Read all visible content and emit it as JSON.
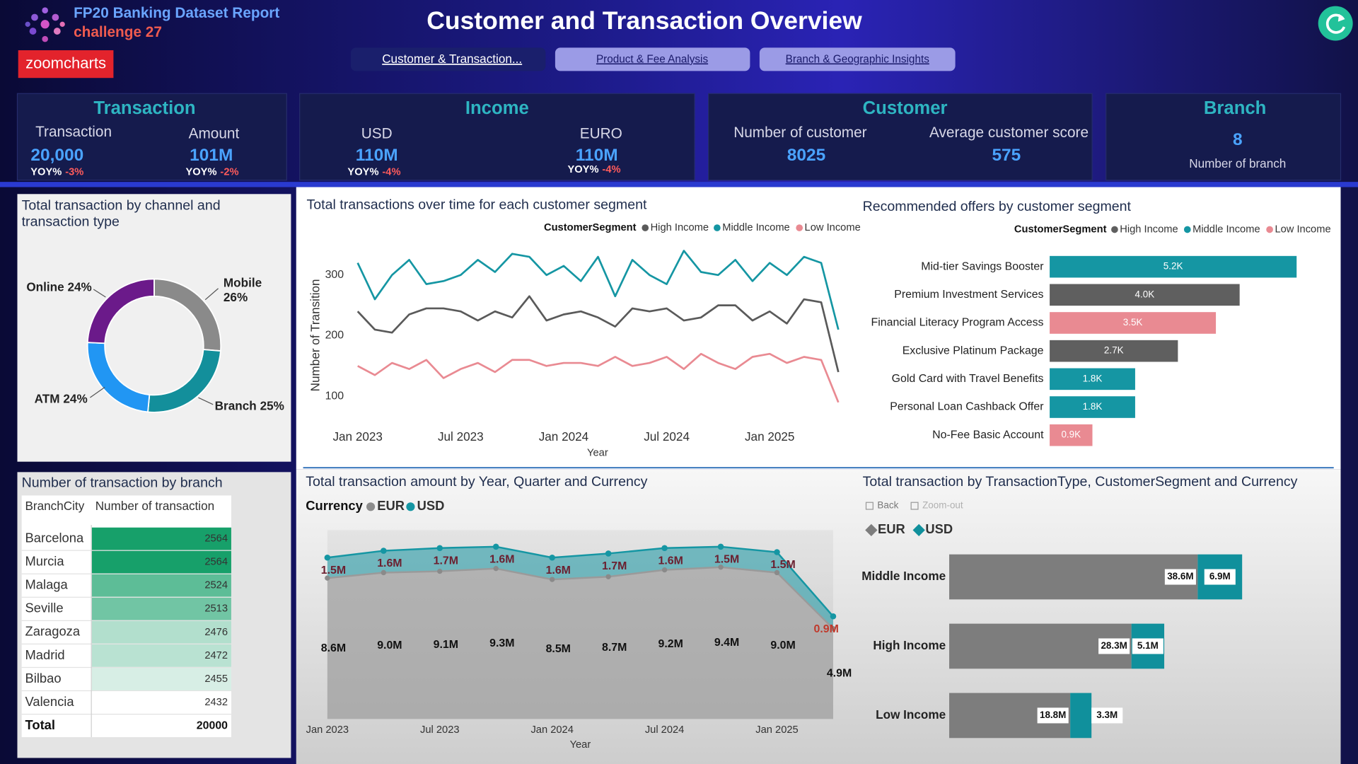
{
  "header": {
    "title": "FP20 Banking Dataset Report",
    "subtitle": "challenge 27",
    "logo": "zoomcharts",
    "page_title": "Customer and Transaction Overview"
  },
  "nav": [
    "Customer & Transaction...",
    "Product & Fee Analysis",
    "Branch & Geographic Insights"
  ],
  "kpis": [
    {
      "title": "Transaction",
      "items": [
        {
          "label": "Transaction",
          "value": "20,000",
          "yoy_label": "YOY%",
          "yoy": "-3%"
        },
        {
          "label": "Amount",
          "value": "101M",
          "yoy_label": "YOY%",
          "yoy": "-2%"
        }
      ]
    },
    {
      "title": "Income",
      "items": [
        {
          "label": "USD",
          "value": "110M",
          "yoy_label": "YOY%",
          "yoy": "-4%"
        },
        {
          "label": "EURO",
          "value": "110M",
          "yoy_label": "YOY%",
          "yoy": "-4%"
        }
      ]
    },
    {
      "title": "Customer",
      "items": [
        {
          "label": "Number of customer",
          "value": "8025"
        },
        {
          "label": "Average customer score",
          "value": "575"
        }
      ]
    },
    {
      "title": "Branch",
      "items": [
        {
          "value": "8",
          "label": "Number of branch"
        }
      ]
    }
  ],
  "table": {
    "title": "Number of transaction by branch",
    "columns": [
      "BranchCity",
      "Number of transaction"
    ],
    "rows": [
      [
        "Barcelona",
        2564
      ],
      [
        "Murcia",
        2564
      ],
      [
        "Malaga",
        2524
      ],
      [
        "Seville",
        2513
      ],
      [
        "Zaragoza",
        2476
      ],
      [
        "Madrid",
        2472
      ],
      [
        "Bilbao",
        2455
      ],
      [
        "Valencia",
        2432
      ]
    ],
    "total": [
      "Total",
      20000
    ]
  },
  "chart_data": [
    {
      "type": "donut",
      "title": "Total transaction by channel and transaction type",
      "categories": [
        "Mobile",
        "Branch",
        "ATM",
        "Online"
      ],
      "values": [
        26,
        25,
        24,
        24
      ],
      "value_labels": [
        "26%",
        "25%",
        "24%",
        "24%"
      ],
      "colors": [
        "#8a8a8a",
        "#138f9b",
        "#2196f3",
        "#6b1a8a"
      ]
    },
    {
      "type": "line",
      "title": "Total transactions over time for each customer segment",
      "legend_title": "CustomerSegment",
      "x": [
        "2023-01",
        "2023-02",
        "2023-03",
        "2023-04",
        "2023-05",
        "2023-06",
        "2023-07",
        "2023-08",
        "2023-09",
        "2023-10",
        "2023-11",
        "2023-12",
        "2024-01",
        "2024-02",
        "2024-03",
        "2024-04",
        "2024-05",
        "2024-06",
        "2024-07",
        "2024-08",
        "2024-09",
        "2024-10",
        "2024-11",
        "2024-12",
        "2025-01",
        "2025-02",
        "2025-03",
        "2025-04",
        "2025-05"
      ],
      "xticks": [
        {
          "value": "2023-01",
          "label": "Jan 2023"
        },
        {
          "value": "2023-07",
          "label": "Jul 2023"
        },
        {
          "value": "2024-01",
          "label": "Jan 2024"
        },
        {
          "value": "2024-07",
          "label": "Jul 2024"
        },
        {
          "value": "2025-01",
          "label": "Jan 2025"
        }
      ],
      "ylim": [
        75,
        355
      ],
      "yticks": [
        100,
        200,
        300
      ],
      "x_label": "Year",
      "y_label": "Number of Transition",
      "series": [
        {
          "name": "High Income",
          "color": "#5a5a5a",
          "values": [
            240,
            210,
            205,
            235,
            245,
            245,
            240,
            225,
            240,
            230,
            265,
            225,
            235,
            240,
            230,
            215,
            245,
            240,
            245,
            225,
            230,
            250,
            250,
            225,
            240,
            220,
            260,
            255,
            140
          ]
        },
        {
          "name": "Middle Income",
          "color": "#1596a3",
          "values": [
            320,
            260,
            300,
            325,
            285,
            290,
            300,
            325,
            305,
            335,
            330,
            300,
            315,
            290,
            330,
            265,
            325,
            300,
            285,
            340,
            305,
            300,
            325,
            290,
            320,
            300,
            330,
            320,
            210
          ]
        },
        {
          "name": "Low Income",
          "color": "#e98a92",
          "values": [
            150,
            135,
            155,
            145,
            160,
            130,
            145,
            155,
            140,
            160,
            160,
            150,
            155,
            155,
            150,
            165,
            150,
            155,
            165,
            145,
            170,
            155,
            145,
            165,
            170,
            155,
            165,
            160,
            90
          ]
        }
      ]
    },
    {
      "type": "hbar",
      "title": "Recommended offers by customer segment",
      "legend_title": "CustomerSegment",
      "categories": [
        "Mid-tier Savings Booster",
        "Premium Investment Services",
        "Financial Literacy Program Access",
        "Exclusive Platinum Package",
        "Gold Card with Travel Benefits",
        "Personal Loan Cashback Offer",
        "No-Fee Basic Account"
      ],
      "xlim": [
        0,
        6000
      ],
      "series": [
        {
          "name": "High Income",
          "color": "#5f5f5f",
          "values": [
            null,
            4000,
            null,
            2700,
            null,
            null,
            null
          ],
          "value_labels": [
            null,
            "4.0K",
            null,
            "2.7K",
            null,
            null,
            null
          ]
        },
        {
          "name": "Middle Income",
          "color": "#1596a3",
          "values": [
            5200,
            null,
            null,
            null,
            1800,
            1800,
            null
          ],
          "value_labels": [
            "5.2K",
            null,
            null,
            null,
            "1.8K",
            "1.8K",
            null
          ]
        },
        {
          "name": "Low Income",
          "color": "#e98a92",
          "values": [
            null,
            null,
            3500,
            null,
            null,
            null,
            900
          ],
          "value_labels": [
            null,
            null,
            "3.5K",
            null,
            null,
            null,
            "0.9K"
          ]
        }
      ]
    },
    {
      "type": "area",
      "title": "Total transaction amount by Year, Quarter and Currency",
      "legend_title": "Currency",
      "x": [
        "2023-01",
        "2023-04",
        "2023-07",
        "2023-10",
        "2024-01",
        "2024-04",
        "2024-07",
        "2024-10",
        "2025-01",
        "2025-04"
      ],
      "xticks": [
        {
          "value": "2023-01",
          "label": "Jan 2023"
        },
        {
          "value": "2023-07",
          "label": "Jul 2023"
        },
        {
          "value": "2024-01",
          "label": "Jan 2024"
        },
        {
          "value": "2024-07",
          "label": "Jul 2024"
        },
        {
          "value": "2025-01",
          "label": "Jan 2025"
        }
      ],
      "x_label": "Year",
      "ylim": [
        0,
        13
      ],
      "series": [
        {
          "name": "EUR",
          "color": "#8c8c8c",
          "values": [
            8.6,
            9.0,
            9.1,
            9.3,
            8.5,
            8.7,
            9.2,
            9.4,
            9.0,
            4.9
          ],
          "value_labels": [
            "8.6M",
            "9.0M",
            "9.1M",
            "9.3M",
            "8.5M",
            "8.7M",
            "9.2M",
            "9.4M",
            "9.0M",
            "4.9M"
          ]
        },
        {
          "name": "USD",
          "color": "#1596a3",
          "values": [
            1.5,
            1.6,
            1.7,
            1.6,
            1.6,
            1.7,
            1.6,
            1.5,
            1.5,
            0.9
          ],
          "value_labels": [
            "1.5M",
            "1.6M",
            "1.7M",
            "1.6M",
            "1.6M",
            "1.7M",
            "1.6M",
            "1.5M",
            "1.5M",
            "0.9M"
          ]
        }
      ]
    },
    {
      "type": "hbar",
      "title": "Total transaction by TransactionType, CustomerSegment and Currency",
      "buttons": [
        "Back",
        "Zoom-out"
      ],
      "categories": [
        "Middle Income",
        "High Income",
        "Low Income"
      ],
      "xlim": [
        0,
        60
      ],
      "series": [
        {
          "name": "EUR",
          "color": "#7d7d7d",
          "values": [
            38.6,
            28.3,
            18.8
          ],
          "value_labels": [
            "38.6M",
            "28.3M",
            "18.8M"
          ]
        },
        {
          "name": "USD",
          "color": "#10909c",
          "values": [
            6.9,
            5.1,
            3.3
          ],
          "value_labels": [
            "6.9M",
            "5.1M",
            "3.3M"
          ]
        }
      ]
    }
  ]
}
